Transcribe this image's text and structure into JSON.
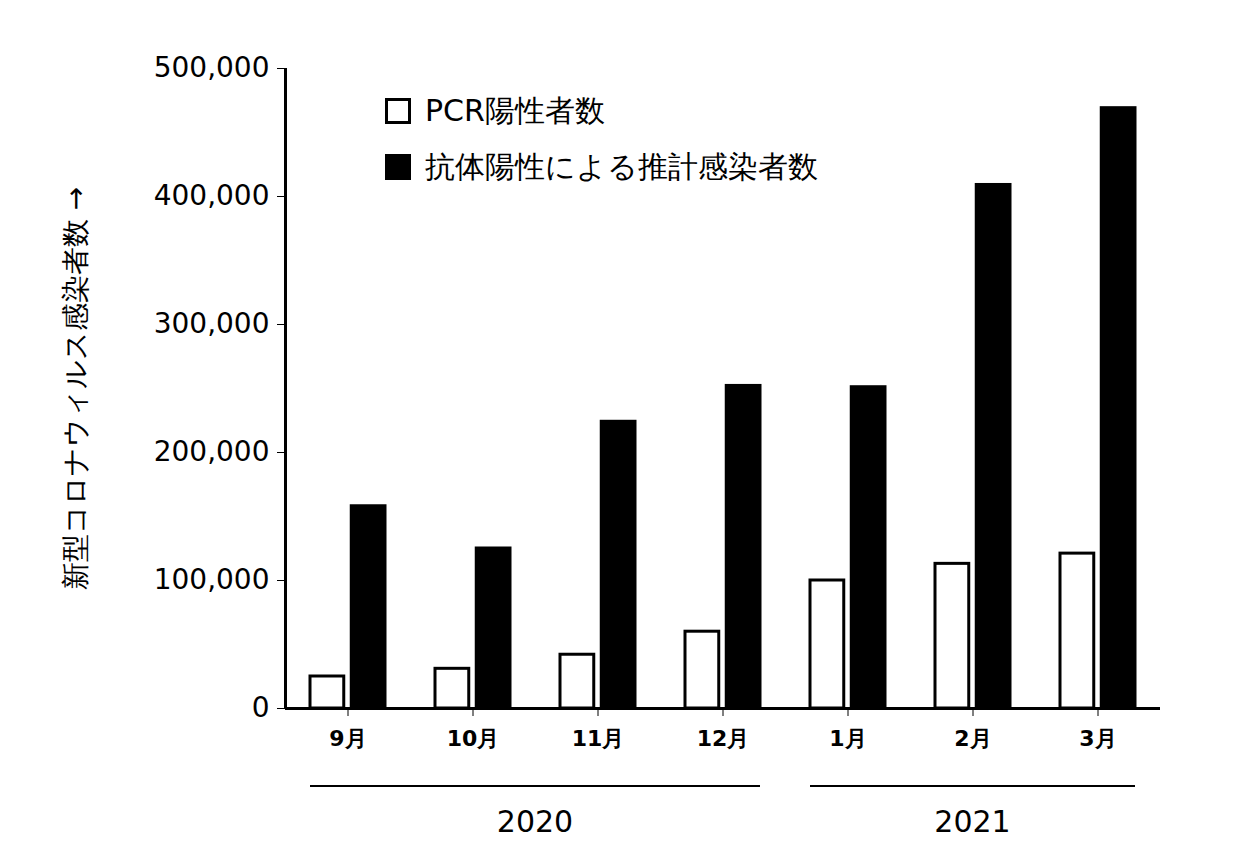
{
  "chart_data": {
    "type": "bar",
    "y_label": "新型コロナウィルス感染者数",
    "categories": [
      "9月",
      "10月",
      "11月",
      "12月",
      "1月",
      "2月",
      "3月"
    ],
    "series": [
      {
        "name": "PCR陽性者数",
        "color": "#ffffff",
        "values": [
          25000,
          31000,
          42000,
          60000,
          100000,
          113000,
          121000
        ]
      },
      {
        "name": "抗体陽性による推計感染者数",
        "color": "#000000",
        "values": [
          158000,
          125000,
          224000,
          252000,
          251000,
          409000,
          469000
        ]
      }
    ],
    "year_groups": [
      {
        "label": "2020",
        "categories": [
          "9月",
          "10月",
          "11月",
          "12月"
        ]
      },
      {
        "label": "2021",
        "categories": [
          "1月",
          "2月",
          "3月"
        ]
      }
    ],
    "ylim": [
      0,
      500000
    ],
    "yticks": [
      0,
      {
        "value": 100000,
        "label": "100,000"
      },
      {
        "value": 200000,
        "label": "200,000"
      },
      {
        "value": 300000,
        "label": "300,000"
      },
      {
        "value": 400000,
        "label": "400,000"
      },
      {
        "value": 500000,
        "label": "500,000"
      }
    ],
    "legend": "top-left",
    "grid": false
  }
}
